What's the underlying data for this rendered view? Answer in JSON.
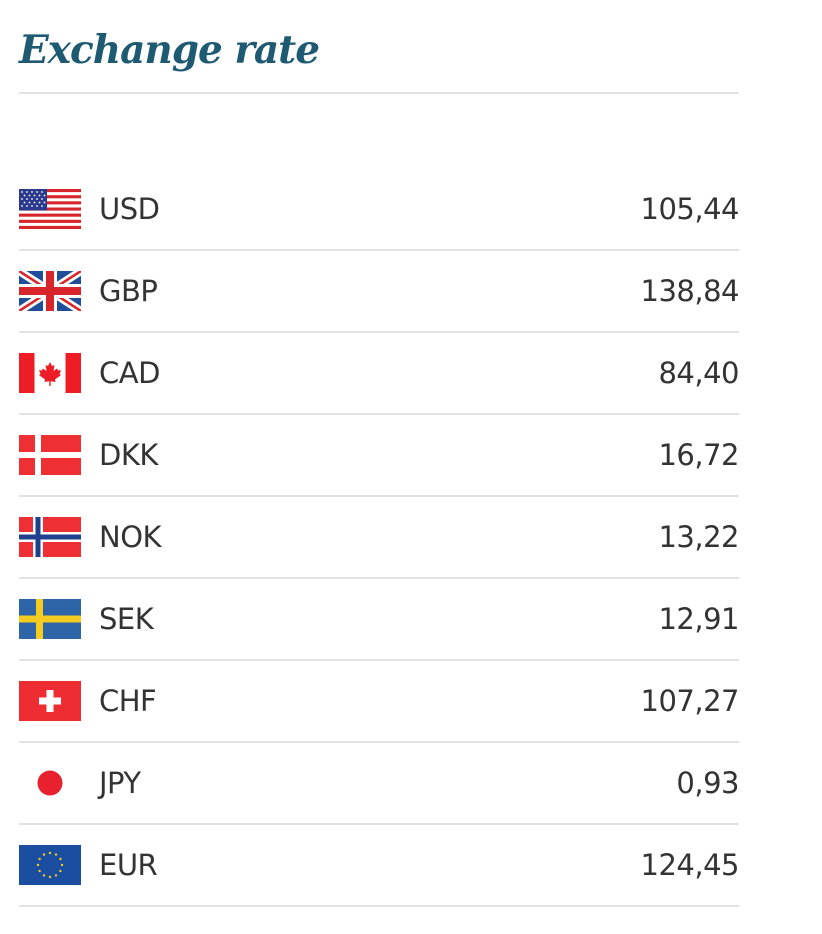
{
  "title": "Exchange rate",
  "rates": [
    {
      "code": "USD",
      "value": "105,44",
      "flag": "us-flag-icon"
    },
    {
      "code": "GBP",
      "value": "138,84",
      "flag": "uk-flag-icon"
    },
    {
      "code": "CAD",
      "value": "84,40",
      "flag": "canada-flag-icon"
    },
    {
      "code": "DKK",
      "value": "16,72",
      "flag": "denmark-flag-icon"
    },
    {
      "code": "NOK",
      "value": "13,22",
      "flag": "norway-flag-icon"
    },
    {
      "code": "SEK",
      "value": "12,91",
      "flag": "sweden-flag-icon"
    },
    {
      "code": "CHF",
      "value": "107,27",
      "flag": "switzerland-flag-icon"
    },
    {
      "code": "JPY",
      "value": "0,93",
      "flag": "japan-flag-icon"
    },
    {
      "code": "EUR",
      "value": "124,45",
      "flag": "eu-flag-icon"
    }
  ],
  "colors": {
    "title": "#1f5a73",
    "text": "#333333",
    "divider": "#e2e2e2"
  }
}
